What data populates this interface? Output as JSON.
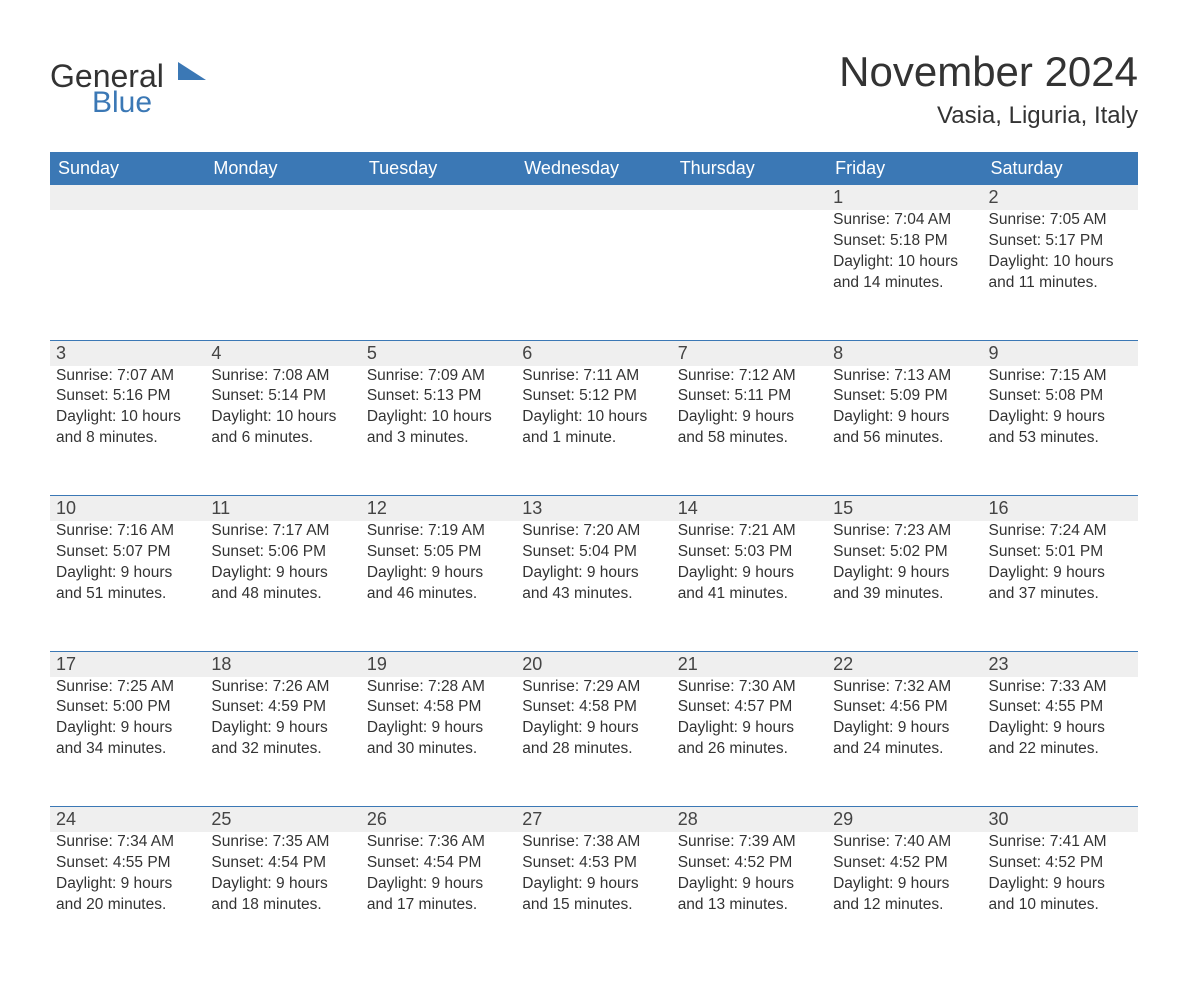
{
  "brand": {
    "part1": "General",
    "part2": "Blue"
  },
  "title": "November 2024",
  "location": "Vasia, Liguria, Italy",
  "colors": {
    "header_bg": "#3b78b5",
    "header_text": "#ffffff",
    "daynum_bg": "#efefef",
    "text": "#333333",
    "rule": "#3b78b5",
    "page_bg": "#ffffff"
  },
  "weekdays": [
    "Sunday",
    "Monday",
    "Tuesday",
    "Wednesday",
    "Thursday",
    "Friday",
    "Saturday"
  ],
  "weeks": [
    [
      null,
      null,
      null,
      null,
      null,
      {
        "n": "1",
        "sr": "Sunrise: 7:04 AM",
        "ss": "Sunset: 5:18 PM",
        "d1": "Daylight: 10 hours",
        "d2": "and 14 minutes."
      },
      {
        "n": "2",
        "sr": "Sunrise: 7:05 AM",
        "ss": "Sunset: 5:17 PM",
        "d1": "Daylight: 10 hours",
        "d2": "and 11 minutes."
      }
    ],
    [
      {
        "n": "3",
        "sr": "Sunrise: 7:07 AM",
        "ss": "Sunset: 5:16 PM",
        "d1": "Daylight: 10 hours",
        "d2": "and 8 minutes."
      },
      {
        "n": "4",
        "sr": "Sunrise: 7:08 AM",
        "ss": "Sunset: 5:14 PM",
        "d1": "Daylight: 10 hours",
        "d2": "and 6 minutes."
      },
      {
        "n": "5",
        "sr": "Sunrise: 7:09 AM",
        "ss": "Sunset: 5:13 PM",
        "d1": "Daylight: 10 hours",
        "d2": "and 3 minutes."
      },
      {
        "n": "6",
        "sr": "Sunrise: 7:11 AM",
        "ss": "Sunset: 5:12 PM",
        "d1": "Daylight: 10 hours",
        "d2": "and 1 minute."
      },
      {
        "n": "7",
        "sr": "Sunrise: 7:12 AM",
        "ss": "Sunset: 5:11 PM",
        "d1": "Daylight: 9 hours",
        "d2": "and 58 minutes."
      },
      {
        "n": "8",
        "sr": "Sunrise: 7:13 AM",
        "ss": "Sunset: 5:09 PM",
        "d1": "Daylight: 9 hours",
        "d2": "and 56 minutes."
      },
      {
        "n": "9",
        "sr": "Sunrise: 7:15 AM",
        "ss": "Sunset: 5:08 PM",
        "d1": "Daylight: 9 hours",
        "d2": "and 53 minutes."
      }
    ],
    [
      {
        "n": "10",
        "sr": "Sunrise: 7:16 AM",
        "ss": "Sunset: 5:07 PM",
        "d1": "Daylight: 9 hours",
        "d2": "and 51 minutes."
      },
      {
        "n": "11",
        "sr": "Sunrise: 7:17 AM",
        "ss": "Sunset: 5:06 PM",
        "d1": "Daylight: 9 hours",
        "d2": "and 48 minutes."
      },
      {
        "n": "12",
        "sr": "Sunrise: 7:19 AM",
        "ss": "Sunset: 5:05 PM",
        "d1": "Daylight: 9 hours",
        "d2": "and 46 minutes."
      },
      {
        "n": "13",
        "sr": "Sunrise: 7:20 AM",
        "ss": "Sunset: 5:04 PM",
        "d1": "Daylight: 9 hours",
        "d2": "and 43 minutes."
      },
      {
        "n": "14",
        "sr": "Sunrise: 7:21 AM",
        "ss": "Sunset: 5:03 PM",
        "d1": "Daylight: 9 hours",
        "d2": "and 41 minutes."
      },
      {
        "n": "15",
        "sr": "Sunrise: 7:23 AM",
        "ss": "Sunset: 5:02 PM",
        "d1": "Daylight: 9 hours",
        "d2": "and 39 minutes."
      },
      {
        "n": "16",
        "sr": "Sunrise: 7:24 AM",
        "ss": "Sunset: 5:01 PM",
        "d1": "Daylight: 9 hours",
        "d2": "and 37 minutes."
      }
    ],
    [
      {
        "n": "17",
        "sr": "Sunrise: 7:25 AM",
        "ss": "Sunset: 5:00 PM",
        "d1": "Daylight: 9 hours",
        "d2": "and 34 minutes."
      },
      {
        "n": "18",
        "sr": "Sunrise: 7:26 AM",
        "ss": "Sunset: 4:59 PM",
        "d1": "Daylight: 9 hours",
        "d2": "and 32 minutes."
      },
      {
        "n": "19",
        "sr": "Sunrise: 7:28 AM",
        "ss": "Sunset: 4:58 PM",
        "d1": "Daylight: 9 hours",
        "d2": "and 30 minutes."
      },
      {
        "n": "20",
        "sr": "Sunrise: 7:29 AM",
        "ss": "Sunset: 4:58 PM",
        "d1": "Daylight: 9 hours",
        "d2": "and 28 minutes."
      },
      {
        "n": "21",
        "sr": "Sunrise: 7:30 AM",
        "ss": "Sunset: 4:57 PM",
        "d1": "Daylight: 9 hours",
        "d2": "and 26 minutes."
      },
      {
        "n": "22",
        "sr": "Sunrise: 7:32 AM",
        "ss": "Sunset: 4:56 PM",
        "d1": "Daylight: 9 hours",
        "d2": "and 24 minutes."
      },
      {
        "n": "23",
        "sr": "Sunrise: 7:33 AM",
        "ss": "Sunset: 4:55 PM",
        "d1": "Daylight: 9 hours",
        "d2": "and 22 minutes."
      }
    ],
    [
      {
        "n": "24",
        "sr": "Sunrise: 7:34 AM",
        "ss": "Sunset: 4:55 PM",
        "d1": "Daylight: 9 hours",
        "d2": "and 20 minutes."
      },
      {
        "n": "25",
        "sr": "Sunrise: 7:35 AM",
        "ss": "Sunset: 4:54 PM",
        "d1": "Daylight: 9 hours",
        "d2": "and 18 minutes."
      },
      {
        "n": "26",
        "sr": "Sunrise: 7:36 AM",
        "ss": "Sunset: 4:54 PM",
        "d1": "Daylight: 9 hours",
        "d2": "and 17 minutes."
      },
      {
        "n": "27",
        "sr": "Sunrise: 7:38 AM",
        "ss": "Sunset: 4:53 PM",
        "d1": "Daylight: 9 hours",
        "d2": "and 15 minutes."
      },
      {
        "n": "28",
        "sr": "Sunrise: 7:39 AM",
        "ss": "Sunset: 4:52 PM",
        "d1": "Daylight: 9 hours",
        "d2": "and 13 minutes."
      },
      {
        "n": "29",
        "sr": "Sunrise: 7:40 AM",
        "ss": "Sunset: 4:52 PM",
        "d1": "Daylight: 9 hours",
        "d2": "and 12 minutes."
      },
      {
        "n": "30",
        "sr": "Sunrise: 7:41 AM",
        "ss": "Sunset: 4:52 PM",
        "d1": "Daylight: 9 hours",
        "d2": "and 10 minutes."
      }
    ]
  ]
}
